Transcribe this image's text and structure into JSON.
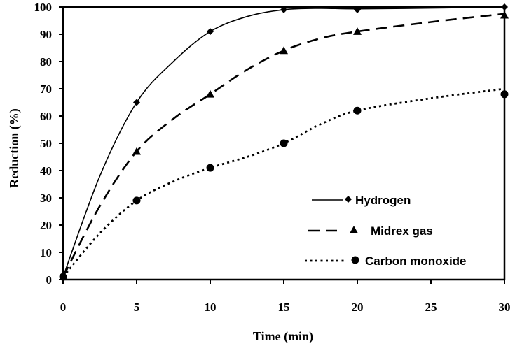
{
  "chart_data": {
    "type": "line",
    "xlabel": "Time (min)",
    "ylabel": "Reduction (%)",
    "xlim": [
      0,
      30
    ],
    "ylim": [
      0,
      100
    ],
    "xticks": [
      0,
      5,
      10,
      15,
      20,
      25,
      30
    ],
    "yticks": [
      0,
      10,
      20,
      30,
      40,
      50,
      60,
      70,
      80,
      90,
      100
    ],
    "grid": false,
    "legend_position": "bottom-right",
    "series": [
      {
        "name": "Hydrogen",
        "marker": "diamond",
        "line_style": "solid",
        "points": [
          [
            0,
            1
          ],
          [
            5,
            65
          ],
          [
            10,
            91
          ],
          [
            15,
            99
          ],
          [
            20,
            99
          ],
          [
            30,
            100
          ]
        ],
        "curve": [
          [
            0,
            1
          ],
          [
            2.5,
            38
          ],
          [
            5,
            65
          ],
          [
            7.5,
            80
          ],
          [
            10,
            91
          ],
          [
            12.5,
            96.5
          ],
          [
            15,
            99
          ],
          [
            17.5,
            99.5
          ],
          [
            20,
            99.3
          ],
          [
            25,
            99.6
          ],
          [
            30,
            100
          ]
        ]
      },
      {
        "name": "Midrex gas",
        "marker": "triangle",
        "line_style": "dashed",
        "points": [
          [
            0,
            1
          ],
          [
            5,
            47
          ],
          [
            10,
            68
          ],
          [
            15,
            84
          ],
          [
            20,
            91
          ],
          [
            30,
            97
          ]
        ],
        "curve": [
          [
            0,
            1
          ],
          [
            2.5,
            27
          ],
          [
            5,
            47
          ],
          [
            7.5,
            59
          ],
          [
            10,
            68
          ],
          [
            12.5,
            77
          ],
          [
            15,
            84
          ],
          [
            17.5,
            88.5
          ],
          [
            20,
            91
          ],
          [
            25,
            94.5
          ],
          [
            30,
            97.5
          ]
        ]
      },
      {
        "name": "Carbon monoxide",
        "marker": "circle",
        "line_style": "dotted",
        "points": [
          [
            0,
            1
          ],
          [
            5,
            29
          ],
          [
            10,
            41
          ],
          [
            15,
            50
          ],
          [
            20,
            62
          ],
          [
            30,
            68
          ]
        ],
        "curve": [
          [
            0,
            1
          ],
          [
            2.5,
            17
          ],
          [
            5,
            29
          ],
          [
            7.5,
            36
          ],
          [
            10,
            41
          ],
          [
            12.5,
            45
          ],
          [
            15,
            50
          ],
          [
            17.5,
            57
          ],
          [
            20,
            62
          ],
          [
            25,
            66.5
          ],
          [
            30,
            70
          ]
        ]
      }
    ]
  }
}
